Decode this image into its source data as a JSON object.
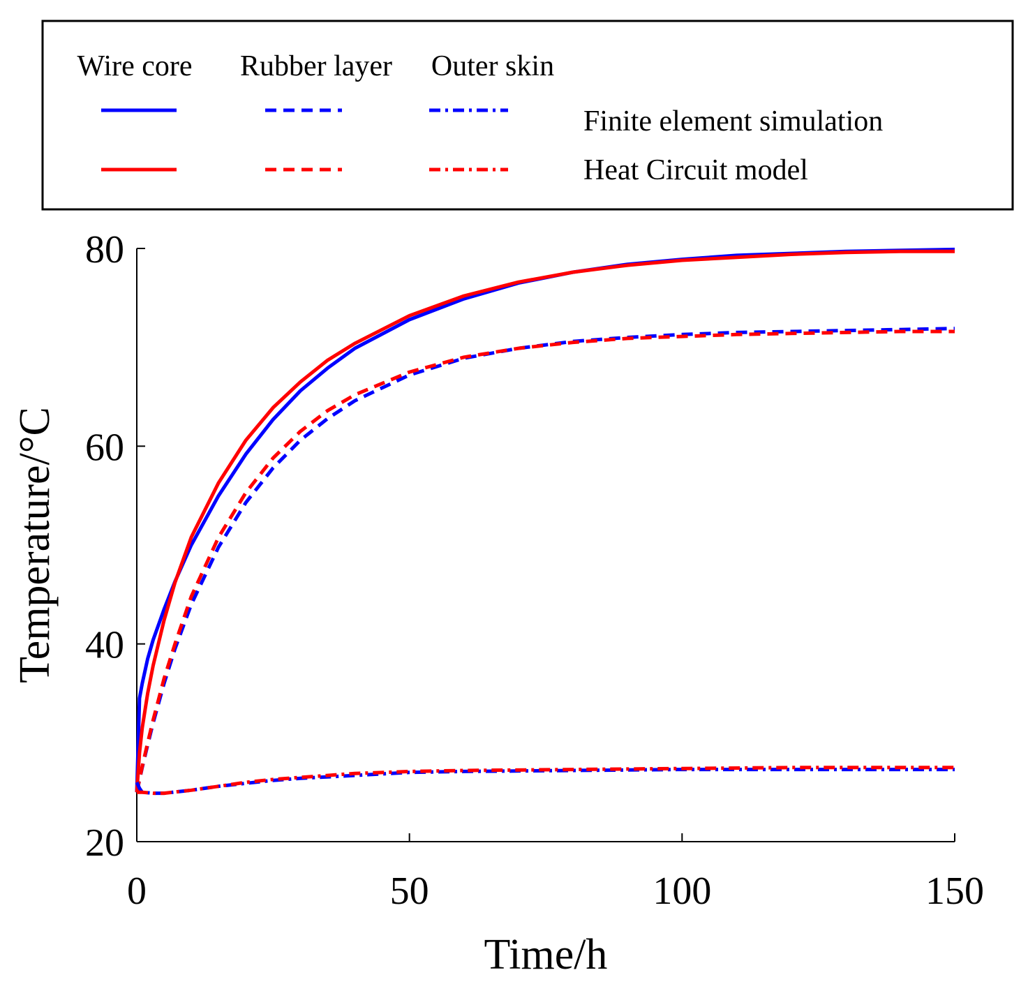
{
  "chart_data": {
    "type": "line",
    "title": "",
    "xlabel": "Time/h",
    "ylabel": "Temperature/°C",
    "xlim": [
      0,
      150
    ],
    "ylim": [
      20,
      80
    ],
    "x_ticks": [
      0,
      50,
      100,
      150
    ],
    "y_ticks": [
      20,
      40,
      60,
      80
    ],
    "grid": false,
    "legend": {
      "position": "top",
      "column_headers": [
        "Wire core",
        "Rubber layer",
        "Outer skin"
      ],
      "row_labels": [
        "Finite element simulation",
        "Heat Circuit model"
      ]
    },
    "series": [
      {
        "name": "Wire core - Finite element simulation",
        "color": "#0000ff",
        "dash": "solid",
        "x": [
          0,
          0.5,
          1,
          2,
          3,
          5,
          7,
          10,
          15,
          20,
          25,
          30,
          35,
          40,
          50,
          60,
          70,
          80,
          90,
          100,
          110,
          120,
          130,
          140,
          150
        ],
        "y": [
          25,
          34.5,
          36,
          38.5,
          40.4,
          43.5,
          46.3,
          50,
          55,
          59.2,
          62.7,
          65.6,
          67.9,
          69.9,
          72.8,
          74.9,
          76.5,
          77.6,
          78.4,
          78.9,
          79.3,
          79.5,
          79.7,
          79.8,
          79.9
        ]
      },
      {
        "name": "Wire core - Heat Circuit model",
        "color": "#ff0000",
        "dash": "solid",
        "x": [
          0,
          0.5,
          1,
          2,
          3,
          5,
          7,
          10,
          15,
          20,
          25,
          30,
          35,
          40,
          50,
          60,
          70,
          80,
          90,
          100,
          110,
          120,
          130,
          140,
          150
        ],
        "y": [
          25,
          29,
          31.5,
          35,
          37.8,
          42.4,
          46.2,
          50.8,
          56.3,
          60.6,
          63.9,
          66.5,
          68.7,
          70.4,
          73.2,
          75.2,
          76.6,
          77.6,
          78.3,
          78.8,
          79.1,
          79.4,
          79.6,
          79.7,
          79.7
        ]
      },
      {
        "name": "Rubber layer - Finite element simulation",
        "color": "#0000ff",
        "dash": "dashed",
        "x": [
          0,
          1,
          2,
          3,
          5,
          7,
          10,
          15,
          20,
          25,
          30,
          35,
          40,
          50,
          60,
          70,
          80,
          90,
          100,
          110,
          120,
          130,
          140,
          150
        ],
        "y": [
          25,
          27.5,
          29.8,
          32,
          36,
          39.5,
          44,
          49.8,
          54.3,
          57.8,
          60.6,
          62.8,
          64.6,
          67.2,
          68.9,
          69.9,
          70.6,
          71,
          71.3,
          71.5,
          71.6,
          71.7,
          71.8,
          71.9
        ]
      },
      {
        "name": "Rubber layer - Heat Circuit model",
        "color": "#ff0000",
        "dash": "dashed",
        "x": [
          0,
          1,
          2,
          3,
          5,
          7,
          10,
          15,
          20,
          25,
          30,
          35,
          40,
          50,
          60,
          70,
          80,
          90,
          100,
          110,
          120,
          130,
          140,
          150
        ],
        "y": [
          25,
          27.6,
          30,
          32.3,
          36.5,
          40,
          44.8,
          50.8,
          55.3,
          58.8,
          61.5,
          63.6,
          65.2,
          67.5,
          69,
          69.9,
          70.5,
          70.9,
          71.1,
          71.3,
          71.4,
          71.5,
          71.6,
          71.6
        ]
      },
      {
        "name": "Outer skin - Finite element simulation",
        "color": "#0000ff",
        "dash": "dashdot",
        "x": [
          0,
          0.5,
          1,
          3,
          5,
          10,
          15,
          20,
          25,
          30,
          40,
          50,
          60,
          80,
          100,
          120,
          150
        ],
        "y": [
          26,
          25.4,
          25,
          24.9,
          24.9,
          25.2,
          25.6,
          25.9,
          26.2,
          26.4,
          26.7,
          27,
          27.1,
          27.2,
          27.3,
          27.3,
          27.3
        ]
      },
      {
        "name": "Outer skin - Heat Circuit model",
        "color": "#ff0000",
        "dash": "dashdot",
        "x": [
          0,
          1,
          3,
          5,
          10,
          15,
          20,
          25,
          30,
          40,
          50,
          60,
          80,
          100,
          120,
          150
        ],
        "y": [
          25,
          25,
          24.9,
          24.9,
          25.2,
          25.6,
          26,
          26.3,
          26.5,
          26.9,
          27.1,
          27.2,
          27.3,
          27.4,
          27.5,
          27.5
        ]
      }
    ]
  }
}
